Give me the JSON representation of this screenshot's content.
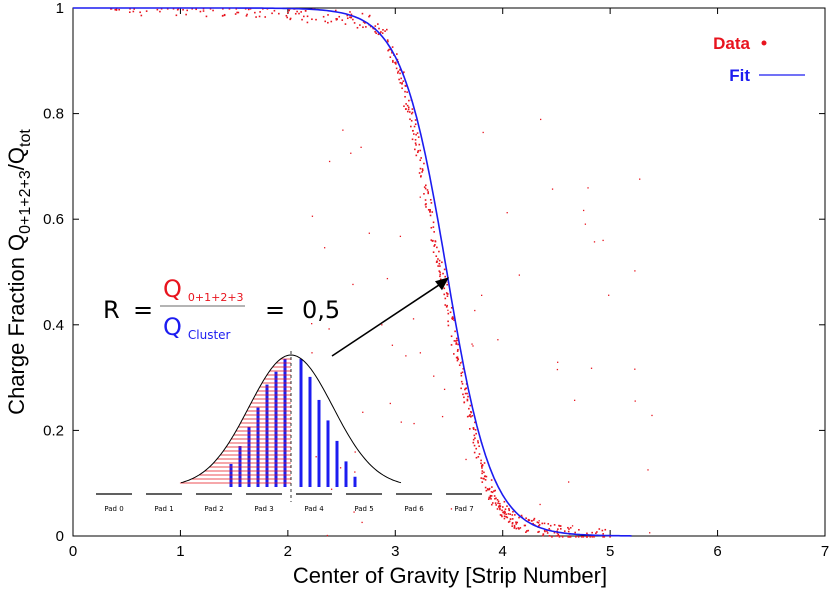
{
  "chart_data": {
    "type": "scatter",
    "title": "",
    "xlabel": "Center of Gravity [Strip Number]",
    "ylabel": "Charge Fraction Q",
    "ylabel_sub": "0+1+2+3",
    "ylabel_suffix": "/Q",
    "ylabel_sub2": "tot",
    "xlim": [
      0,
      7
    ],
    "ylim": [
      0,
      1
    ],
    "x_ticks": [
      0,
      1,
      2,
      3,
      4,
      5,
      6,
      7
    ],
    "x_tick_labels": [
      "0",
      "1",
      "2",
      "3",
      "4",
      "5",
      "6",
      "7"
    ],
    "y_ticks": [
      0,
      0.2,
      0.4,
      0.6,
      0.8,
      1
    ],
    "y_tick_labels": [
      "0",
      "0.2",
      "0.4",
      "0.6",
      "0.8",
      "1"
    ],
    "grid": false,
    "legend_position": "top-right",
    "series": [
      {
        "name": "Data",
        "kind": "scatter",
        "color": "#e8141e",
        "x": [
          0.3,
          0.8,
          1.2,
          1.6,
          1.9,
          2.1,
          2.4,
          2.6,
          2.8,
          2.9,
          3.0,
          3.05,
          3.1,
          3.15,
          3.2,
          3.25,
          3.3,
          3.35,
          3.4,
          3.45,
          3.5,
          3.55,
          3.6,
          3.65,
          3.7,
          3.75,
          3.8,
          3.85,
          3.9,
          3.95,
          4.0,
          4.05,
          4.1,
          4.2,
          4.3,
          4.4,
          4.5,
          4.6,
          4.8,
          5.0
        ],
        "y": [
          1.0,
          1.0,
          1.0,
          1.0,
          0.995,
          0.99,
          0.985,
          0.98,
          0.97,
          0.95,
          0.9,
          0.87,
          0.83,
          0.79,
          0.74,
          0.69,
          0.63,
          0.57,
          0.52,
          0.47,
          0.42,
          0.37,
          0.32,
          0.27,
          0.22,
          0.17,
          0.13,
          0.1,
          0.08,
          0.06,
          0.05,
          0.04,
          0.03,
          0.025,
          0.02,
          0.015,
          0.01,
          0.005,
          0.002,
          0.0
        ]
      },
      {
        "name": "Fit",
        "kind": "line",
        "color": "#1c1cf0",
        "model": "fermi",
        "x0": 3.48,
        "width": 0.21,
        "x_range": [
          0,
          5.2
        ]
      }
    ],
    "annotations": {
      "formula_lhs": "R",
      "formula_eq1": "=",
      "numerator": "Q",
      "numerator_sub": "0+1+2+3",
      "denominator": "Q",
      "denominator_sub": "Cluster",
      "formula_eq2": "=",
      "formula_value": "0,5",
      "arrow_target": [
        3.5,
        0.49
      ],
      "pad_labels": [
        "Pad 0",
        "Pad 1",
        "Pad 2",
        "Pad 3",
        "Pad 4",
        "Pad 5",
        "Pad 6",
        "Pad 7"
      ],
      "red_bar_heights": [
        0.18,
        0.32,
        0.47,
        0.62,
        0.8,
        0.9,
        1.0
      ],
      "blue_bar_heights": [
        1.0,
        0.86,
        0.68,
        0.52,
        0.36,
        0.2,
        0.08
      ]
    }
  }
}
